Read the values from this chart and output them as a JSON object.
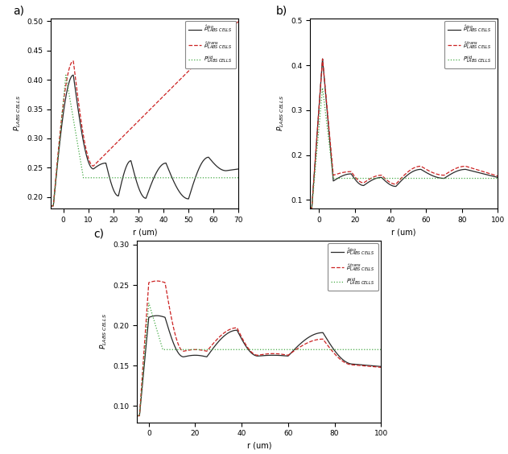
{
  "colors": {
    "iso": "#2a2a2a",
    "trans": "#cc2222",
    "iid": "#44aa44"
  },
  "panel_a": {
    "xlim": [
      -5,
      70
    ],
    "ylim": [
      0.18,
      0.505
    ],
    "xticks": [
      0,
      10,
      20,
      30,
      40,
      50,
      60,
      70
    ],
    "yticks": [
      0.2,
      0.25,
      0.3,
      0.35,
      0.4,
      0.45,
      0.5
    ],
    "xlabel": "r (um)",
    "ylabel": "P_LABS CELLS",
    "iid_level": 0.233
  },
  "panel_b": {
    "xlim": [
      -5,
      100
    ],
    "ylim": [
      0.08,
      0.505
    ],
    "xticks": [
      0,
      20,
      40,
      60,
      80,
      100
    ],
    "yticks": [
      0.1,
      0.2,
      0.3,
      0.4,
      0.5
    ],
    "xlabel": "r (um)",
    "ylabel": "P_LABS CELLS",
    "iid_level": 0.148
  },
  "panel_c": {
    "xlim": [
      -5,
      100
    ],
    "ylim": [
      0.08,
      0.305
    ],
    "xticks": [
      0,
      20,
      40,
      60,
      80,
      100
    ],
    "yticks": [
      0.1,
      0.15,
      0.2,
      0.25,
      0.3
    ],
    "xlabel": "r (um)",
    "ylabel": "P_LABS CELLS",
    "iid_level": 0.17
  }
}
